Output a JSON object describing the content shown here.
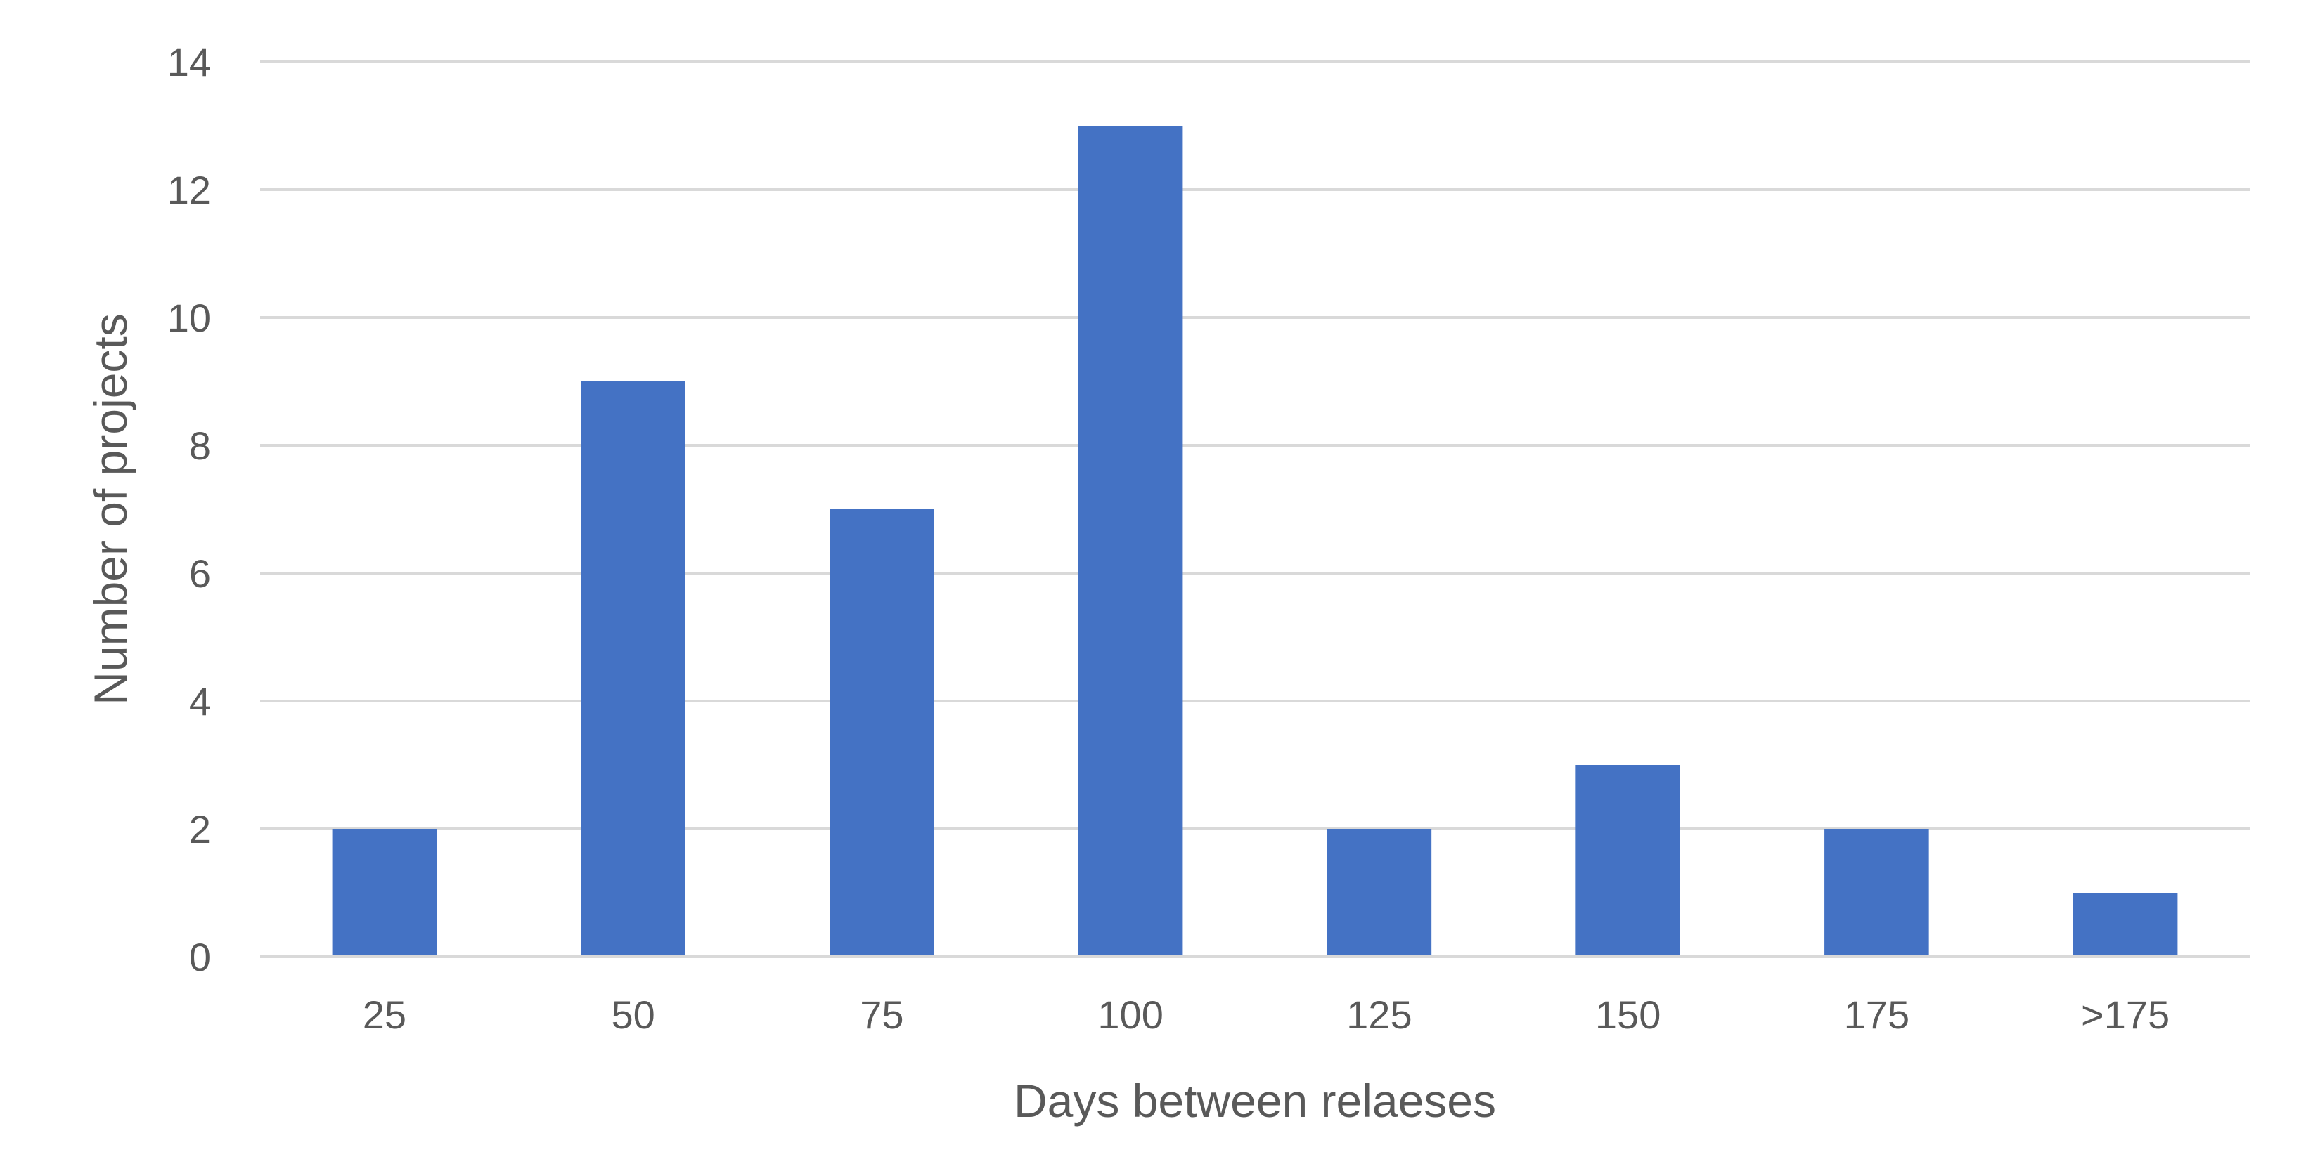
{
  "chart_data": {
    "type": "bar",
    "title": "",
    "xlabel": "Days between relaeses",
    "ylabel": "Number of projects",
    "categories": [
      "25",
      "50",
      "75",
      "100",
      "125",
      "150",
      "175",
      ">175"
    ],
    "values": [
      2,
      9,
      7,
      13,
      2,
      3,
      2,
      1
    ],
    "ylim": [
      0,
      14
    ],
    "yticks": [
      "0",
      "2",
      "4",
      "6",
      "8",
      "10",
      "12",
      "14"
    ],
    "grid": true,
    "legend": "none",
    "bar_color": "#4472C4"
  }
}
